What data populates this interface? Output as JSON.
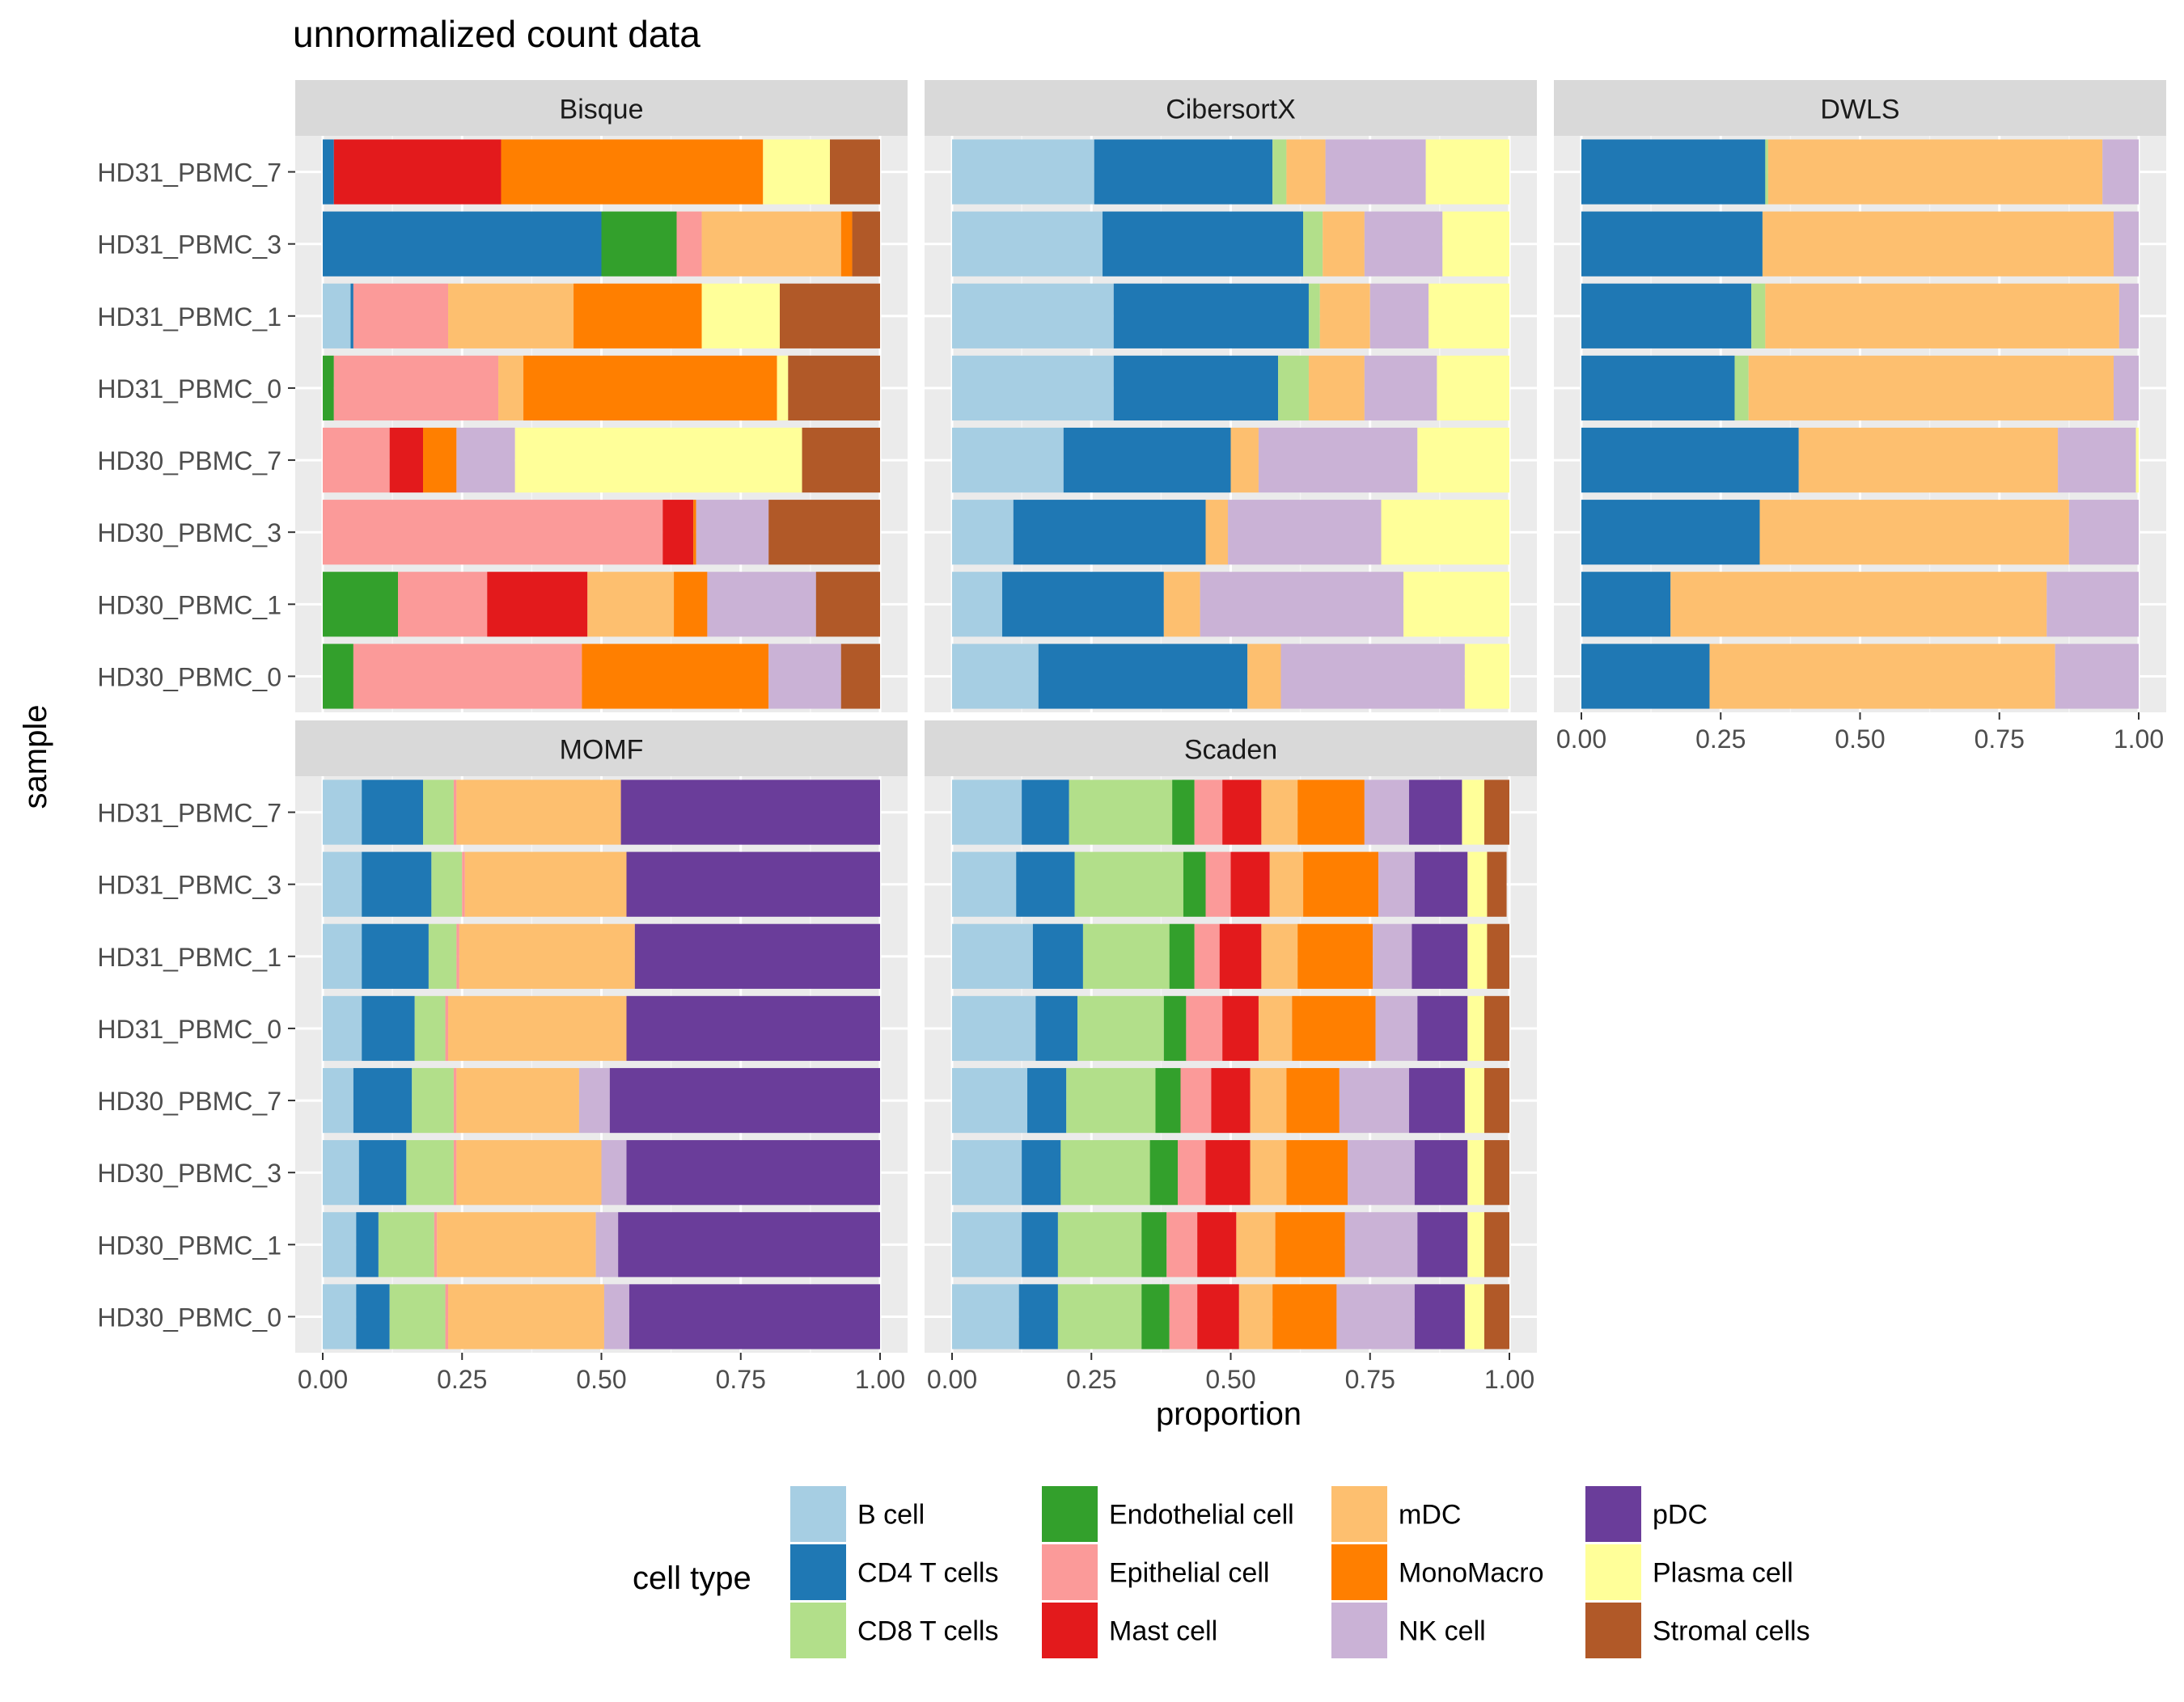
{
  "title": "unnormalized count data",
  "chart_data": {
    "type": "bar",
    "orientation": "horizontal",
    "stacked": true,
    "xlabel": "proportion",
    "ylabel": "sample",
    "xlim": [
      0,
      1
    ],
    "xticks": [
      "0.00",
      "0.25",
      "0.50",
      "0.75",
      "1.00"
    ],
    "categories": [
      "HD31_PBMC_7",
      "HD31_PBMC_3",
      "HD31_PBMC_1",
      "HD31_PBMC_0",
      "HD30_PBMC_7",
      "HD30_PBMC_3",
      "HD30_PBMC_1",
      "HD30_PBMC_0"
    ],
    "legend": {
      "title": "cell type",
      "placement": "bottom",
      "items": [
        {
          "name": "B cell",
          "color": "#A6CEE3"
        },
        {
          "name": "CD4 T cells",
          "color": "#1F78B4"
        },
        {
          "name": "CD8 T cells",
          "color": "#B2DF8A"
        },
        {
          "name": "Endothelial cell",
          "color": "#33A02C"
        },
        {
          "name": "Epithelial cell",
          "color": "#FB9A99"
        },
        {
          "name": "Mast cell",
          "color": "#E31A1C"
        },
        {
          "name": "mDC",
          "color": "#FDBF6F"
        },
        {
          "name": "MonoMacro",
          "color": "#FF7F00"
        },
        {
          "name": "NK cell",
          "color": "#CAB2D6"
        },
        {
          "name": "pDC",
          "color": "#6A3D9A"
        },
        {
          "name": "Plasma cell",
          "color": "#FFFF99"
        },
        {
          "name": "Stromal cells",
          "color": "#B15928"
        }
      ]
    },
    "panels": [
      {
        "name": "Bisque",
        "values": [
          [
            0,
            0.02,
            0,
            0,
            0,
            0.3,
            0,
            0.47,
            0,
            0,
            0.12,
            0.09
          ],
          [
            0,
            0.5,
            0,
            0.135,
            0.045,
            0,
            0.25,
            0.02,
            0,
            0,
            0,
            0.05
          ],
          [
            0.05,
            0.005,
            0,
            0,
            0.17,
            0,
            0.225,
            0.23,
            0,
            0,
            0.14,
            0.18
          ],
          [
            0,
            0,
            0,
            0.02,
            0.295,
            0,
            0.045,
            0.455,
            0,
            0,
            0.02,
            0.165
          ],
          [
            0,
            0,
            0,
            0,
            0.12,
            0.06,
            0,
            0.06,
            0.105,
            0,
            0.515,
            0.14
          ],
          [
            0,
            0,
            0,
            0,
            0.61,
            0.055,
            0,
            0.005,
            0.13,
            0,
            0,
            0.2
          ],
          [
            0,
            0,
            0,
            0.135,
            0.16,
            0.18,
            0.155,
            0.06,
            0.195,
            0,
            0,
            0.115
          ],
          [
            0,
            0,
            0,
            0.055,
            0.41,
            0,
            0,
            0.335,
            0.13,
            0,
            0,
            0.07
          ]
        ]
      },
      {
        "name": "CibersortX",
        "values": [
          [
            0.255,
            0.32,
            0.025,
            0,
            0,
            0,
            0.07,
            0,
            0.18,
            0,
            0.15,
            0
          ],
          [
            0.27,
            0.36,
            0.035,
            0,
            0,
            0,
            0.075,
            0,
            0.14,
            0,
            0.12,
            0
          ],
          [
            0.29,
            0.35,
            0.02,
            0,
            0,
            0,
            0.09,
            0,
            0.105,
            0,
            0.145,
            0
          ],
          [
            0.29,
            0.295,
            0.055,
            0,
            0,
            0,
            0.1,
            0,
            0.13,
            0,
            0.13,
            0
          ],
          [
            0.2,
            0.3,
            0,
            0,
            0,
            0,
            0.05,
            0,
            0.285,
            0,
            0.165,
            0
          ],
          [
            0.11,
            0.345,
            0,
            0,
            0,
            0,
            0.04,
            0,
            0.275,
            0,
            0.23,
            0
          ],
          [
            0.09,
            0.29,
            0,
            0,
            0,
            0,
            0.065,
            0,
            0.365,
            0,
            0.19,
            0
          ],
          [
            0.155,
            0.375,
            0,
            0,
            0,
            0,
            0.06,
            0,
            0.33,
            0,
            0.08,
            0
          ]
        ]
      },
      {
        "name": "DWLS",
        "values": [
          [
            0,
            0.33,
            0.005,
            0,
            0,
            0,
            0.6,
            0,
            0.065,
            0,
            0,
            0
          ],
          [
            0,
            0.325,
            0,
            0,
            0,
            0,
            0.63,
            0,
            0.045,
            0,
            0,
            0
          ],
          [
            0,
            0.305,
            0.025,
            0,
            0,
            0,
            0.635,
            0,
            0.035,
            0,
            0,
            0
          ],
          [
            0,
            0.275,
            0.025,
            0,
            0,
            0,
            0.655,
            0,
            0.045,
            0,
            0,
            0
          ],
          [
            0,
            0.39,
            0,
            0,
            0,
            0,
            0.465,
            0,
            0.14,
            0,
            0.005,
            0
          ],
          [
            0,
            0.32,
            0,
            0,
            0,
            0,
            0.555,
            0,
            0.125,
            0,
            0,
            0
          ],
          [
            0,
            0.16,
            0,
            0,
            0,
            0,
            0.675,
            0,
            0.165,
            0,
            0,
            0
          ],
          [
            0,
            0.23,
            0,
            0,
            0,
            0,
            0.62,
            0,
            0.15,
            0,
            0,
            0
          ]
        ]
      },
      {
        "name": "MOMF",
        "values": [
          [
            0.07,
            0.11,
            0.055,
            0,
            0.005,
            0,
            0.295,
            0,
            0,
            0.465,
            0,
            0
          ],
          [
            0.07,
            0.125,
            0.055,
            0,
            0.005,
            0,
            0.29,
            0,
            0,
            0.455,
            0,
            0
          ],
          [
            0.07,
            0.12,
            0.05,
            0,
            0.005,
            0,
            0.315,
            0,
            0,
            0.44,
            0,
            0
          ],
          [
            0.07,
            0.095,
            0.055,
            0,
            0.005,
            0,
            0.32,
            0,
            0,
            0.455,
            0,
            0
          ],
          [
            0.055,
            0.105,
            0.075,
            0,
            0.005,
            0,
            0.22,
            0,
            0.055,
            0.485,
            0,
            0
          ],
          [
            0.065,
            0.085,
            0.085,
            0,
            0.005,
            0,
            0.26,
            0,
            0.045,
            0.455,
            0,
            0
          ],
          [
            0.06,
            0.04,
            0.1,
            0,
            0.005,
            0,
            0.285,
            0,
            0.04,
            0.47,
            0,
            0
          ],
          [
            0.06,
            0.06,
            0.1,
            0,
            0.005,
            0,
            0.28,
            0,
            0.045,
            0.45,
            0,
            0
          ]
        ]
      },
      {
        "name": "Scaden",
        "values": [
          [
            0.125,
            0.085,
            0.185,
            0.04,
            0.05,
            0.07,
            0.065,
            0.12,
            0.08,
            0.095,
            0.04,
            0.045
          ],
          [
            0.115,
            0.105,
            0.195,
            0.04,
            0.045,
            0.07,
            0.06,
            0.135,
            0.065,
            0.095,
            0.035,
            0.035
          ],
          [
            0.145,
            0.09,
            0.155,
            0.045,
            0.045,
            0.075,
            0.065,
            0.135,
            0.07,
            0.1,
            0.035,
            0.04
          ],
          [
            0.15,
            0.075,
            0.155,
            0.04,
            0.065,
            0.065,
            0.06,
            0.15,
            0.075,
            0.09,
            0.03,
            0.045
          ],
          [
            0.135,
            0.07,
            0.16,
            0.045,
            0.055,
            0.07,
            0.065,
            0.095,
            0.125,
            0.1,
            0.035,
            0.045
          ],
          [
            0.125,
            0.07,
            0.16,
            0.05,
            0.05,
            0.08,
            0.065,
            0.11,
            0.12,
            0.095,
            0.03,
            0.045
          ],
          [
            0.125,
            0.065,
            0.15,
            0.045,
            0.055,
            0.07,
            0.07,
            0.125,
            0.13,
            0.09,
            0.03,
            0.045
          ],
          [
            0.12,
            0.07,
            0.15,
            0.05,
            0.05,
            0.075,
            0.06,
            0.115,
            0.14,
            0.09,
            0.035,
            0.045
          ]
        ]
      }
    ]
  }
}
